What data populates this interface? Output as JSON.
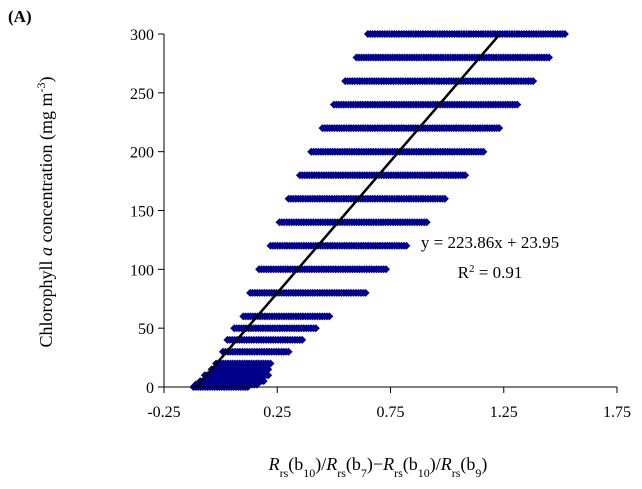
{
  "panel_label": "(A)",
  "colors": {
    "points": "#00008B",
    "line": "#000000",
    "axis": "#000000"
  },
  "chart_data": {
    "type": "scatter",
    "xlabel": "Rrs(b10)/Rrs(b7)−Rrs(b10)/Rrs(b9)",
    "ylabel": "Chlorophyll a concentration (mg m-3)",
    "xlim": [
      -0.25,
      1.75
    ],
    "ylim": [
      0,
      300
    ],
    "xticks": [
      "-0.25",
      "0.25",
      "0.75",
      "1.25",
      "1.75"
    ],
    "yticks": [
      "0",
      "50",
      "100",
      "150",
      "200",
      "250",
      "300"
    ],
    "grid": false,
    "scatter_rows": [
      {
        "y": 300,
        "x_min": 0.65,
        "x_max": 1.52
      },
      {
        "y": 280,
        "x_min": 0.6,
        "x_max": 1.45
      },
      {
        "y": 260,
        "x_min": 0.55,
        "x_max": 1.38
      },
      {
        "y": 240,
        "x_min": 0.5,
        "x_max": 1.31
      },
      {
        "y": 220,
        "x_min": 0.45,
        "x_max": 1.23
      },
      {
        "y": 200,
        "x_min": 0.4,
        "x_max": 1.16
      },
      {
        "y": 180,
        "x_min": 0.35,
        "x_max": 1.08
      },
      {
        "y": 160,
        "x_min": 0.3,
        "x_max": 0.99
      },
      {
        "y": 140,
        "x_min": 0.26,
        "x_max": 0.91
      },
      {
        "y": 120,
        "x_min": 0.22,
        "x_max": 0.82
      },
      {
        "y": 100,
        "x_min": 0.17,
        "x_max": 0.73
      },
      {
        "y": 80,
        "x_min": 0.13,
        "x_max": 0.64
      },
      {
        "y": 60,
        "x_min": 0.1,
        "x_max": 0.48
      },
      {
        "y": 50,
        "x_min": 0.06,
        "x_max": 0.42
      },
      {
        "y": 40,
        "x_min": 0.03,
        "x_max": 0.36
      },
      {
        "y": 30,
        "x_min": 0.01,
        "x_max": 0.3
      },
      {
        "y": 20,
        "x_min": -0.02,
        "x_max": 0.22
      },
      {
        "y": 15,
        "x_min": -0.04,
        "x_max": 0.21
      },
      {
        "y": 10,
        "x_min": -0.07,
        "x_max": 0.21
      },
      {
        "y": 5,
        "x_min": -0.09,
        "x_max": 0.19
      },
      {
        "y": 2,
        "x_min": -0.11,
        "x_max": 0.16
      },
      {
        "y": 0,
        "x_min": -0.12,
        "x_max": 0.12
      }
    ],
    "trendline": {
      "equation": "y = 223.86x + 23.95",
      "r2_text": "= 0.91",
      "slope": 223.86,
      "intercept": 23.95,
      "x_range": [
        -0.11,
        1.23
      ]
    }
  }
}
